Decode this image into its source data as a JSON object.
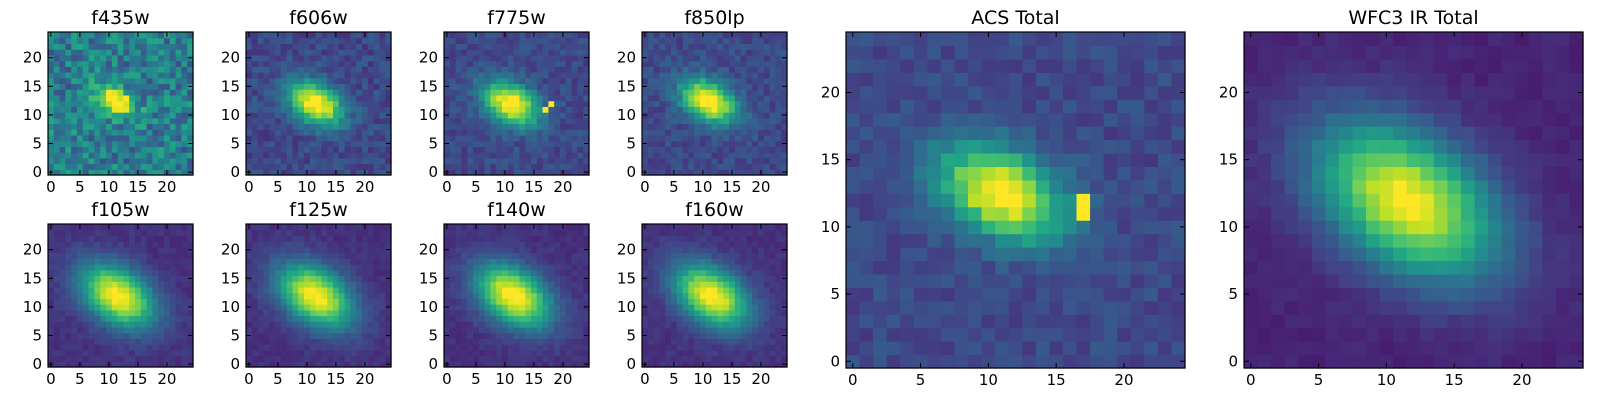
{
  "figure": {
    "colormap": "viridis",
    "grid": false,
    "legend": "none"
  },
  "chart_data": [
    {
      "type": "heatmap",
      "title": "f435w",
      "xticks": [
        0,
        5,
        10,
        15,
        20
      ],
      "yticks": [
        0,
        5,
        10,
        15,
        20
      ],
      "xlim": [
        0,
        24
      ],
      "ylim": [
        0,
        24
      ],
      "source": {
        "cx": 11,
        "cy": 12.5,
        "sx": 2.4,
        "sy": 1.5,
        "angle_deg": -30,
        "amp": 0.78,
        "bg": 0.42,
        "noise": 0.36
      }
    },
    {
      "type": "heatmap",
      "title": "f606w",
      "xticks": [
        0,
        5,
        10,
        15,
        20
      ],
      "yticks": [
        0,
        5,
        10,
        15,
        20
      ],
      "xlim": [
        0,
        24
      ],
      "ylim": [
        0,
        24
      ],
      "source": {
        "cx": 11.5,
        "cy": 12,
        "sx": 3.5,
        "sy": 2.3,
        "angle_deg": -30,
        "amp": 0.85,
        "bg": 0.22,
        "noise": 0.16
      }
    },
    {
      "type": "heatmap",
      "title": "f775w",
      "xticks": [
        0,
        5,
        10,
        15,
        20
      ],
      "yticks": [
        0,
        5,
        10,
        15,
        20
      ],
      "xlim": [
        0,
        24
      ],
      "ylim": [
        0,
        24
      ],
      "source": {
        "cx": 11,
        "cy": 12,
        "sx": 3.6,
        "sy": 2.3,
        "angle_deg": -30,
        "amp": 0.85,
        "bg": 0.22,
        "noise": 0.14
      },
      "bright_pixels": [
        [
          17,
          11
        ],
        [
          18,
          12
        ]
      ]
    },
    {
      "type": "heatmap",
      "title": "f850lp",
      "xticks": [
        0,
        5,
        10,
        15,
        20
      ],
      "yticks": [
        0,
        5,
        10,
        15,
        20
      ],
      "xlim": [
        0,
        24
      ],
      "ylim": [
        0,
        24
      ],
      "source": {
        "cx": 11,
        "cy": 12.5,
        "sx": 3.6,
        "sy": 2.3,
        "angle_deg": -30,
        "amp": 0.85,
        "bg": 0.22,
        "noise": 0.14
      }
    },
    {
      "type": "heatmap",
      "title": "f105w",
      "xticks": [
        0,
        5,
        10,
        15,
        20
      ],
      "yticks": [
        0,
        5,
        10,
        15,
        20
      ],
      "xlim": [
        0,
        24
      ],
      "ylim": [
        0,
        24
      ],
      "source": {
        "cx": 11.5,
        "cy": 12,
        "sx": 5.0,
        "sy": 3.2,
        "angle_deg": -35,
        "amp": 0.88,
        "bg": 0.14,
        "noise": 0.07
      }
    },
    {
      "type": "heatmap",
      "title": "f125w",
      "xticks": [
        0,
        5,
        10,
        15,
        20
      ],
      "yticks": [
        0,
        5,
        10,
        15,
        20
      ],
      "xlim": [
        0,
        24
      ],
      "ylim": [
        0,
        24
      ],
      "source": {
        "cx": 11.5,
        "cy": 12,
        "sx": 5.0,
        "sy": 3.2,
        "angle_deg": -35,
        "amp": 0.88,
        "bg": 0.14,
        "noise": 0.07
      }
    },
    {
      "type": "heatmap",
      "title": "f140w",
      "xticks": [
        0,
        5,
        10,
        15,
        20
      ],
      "yticks": [
        0,
        5,
        10,
        15,
        20
      ],
      "xlim": [
        0,
        24
      ],
      "ylim": [
        0,
        24
      ],
      "source": {
        "cx": 11.5,
        "cy": 12,
        "sx": 5.0,
        "sy": 3.2,
        "angle_deg": -35,
        "amp": 0.9,
        "bg": 0.14,
        "noise": 0.07
      }
    },
    {
      "type": "heatmap",
      "title": "f160w",
      "xticks": [
        0,
        5,
        10,
        15,
        20
      ],
      "yticks": [
        0,
        5,
        10,
        15,
        20
      ],
      "xlim": [
        0,
        24
      ],
      "ylim": [
        0,
        24
      ],
      "source": {
        "cx": 11.5,
        "cy": 12,
        "sx": 5.0,
        "sy": 3.2,
        "angle_deg": -35,
        "amp": 0.88,
        "bg": 0.14,
        "noise": 0.07
      }
    },
    {
      "type": "heatmap",
      "title": "ACS Total",
      "xticks": [
        0,
        5,
        10,
        15,
        20
      ],
      "yticks": [
        0,
        5,
        10,
        15,
        20
      ],
      "xlim": [
        0,
        24
      ],
      "ylim": [
        0,
        24
      ],
      "source": {
        "cx": 11,
        "cy": 12.5,
        "sx": 3.4,
        "sy": 2.1,
        "angle_deg": -28,
        "amp": 0.85,
        "bg": 0.22,
        "noise": 0.12
      },
      "bright_pixels": [
        [
          17,
          11
        ],
        [
          17,
          12
        ]
      ]
    },
    {
      "type": "heatmap",
      "title": "WFC3 IR Total",
      "xticks": [
        0,
        5,
        10,
        15,
        20
      ],
      "yticks": [
        0,
        5,
        10,
        15,
        20
      ],
      "xlim": [
        0,
        24
      ],
      "ylim": [
        0,
        24
      ],
      "source": {
        "cx": 11.5,
        "cy": 12,
        "sx": 5.2,
        "sy": 3.3,
        "angle_deg": -35,
        "amp": 0.9,
        "bg": 0.1,
        "noise": 0.05
      }
    }
  ]
}
